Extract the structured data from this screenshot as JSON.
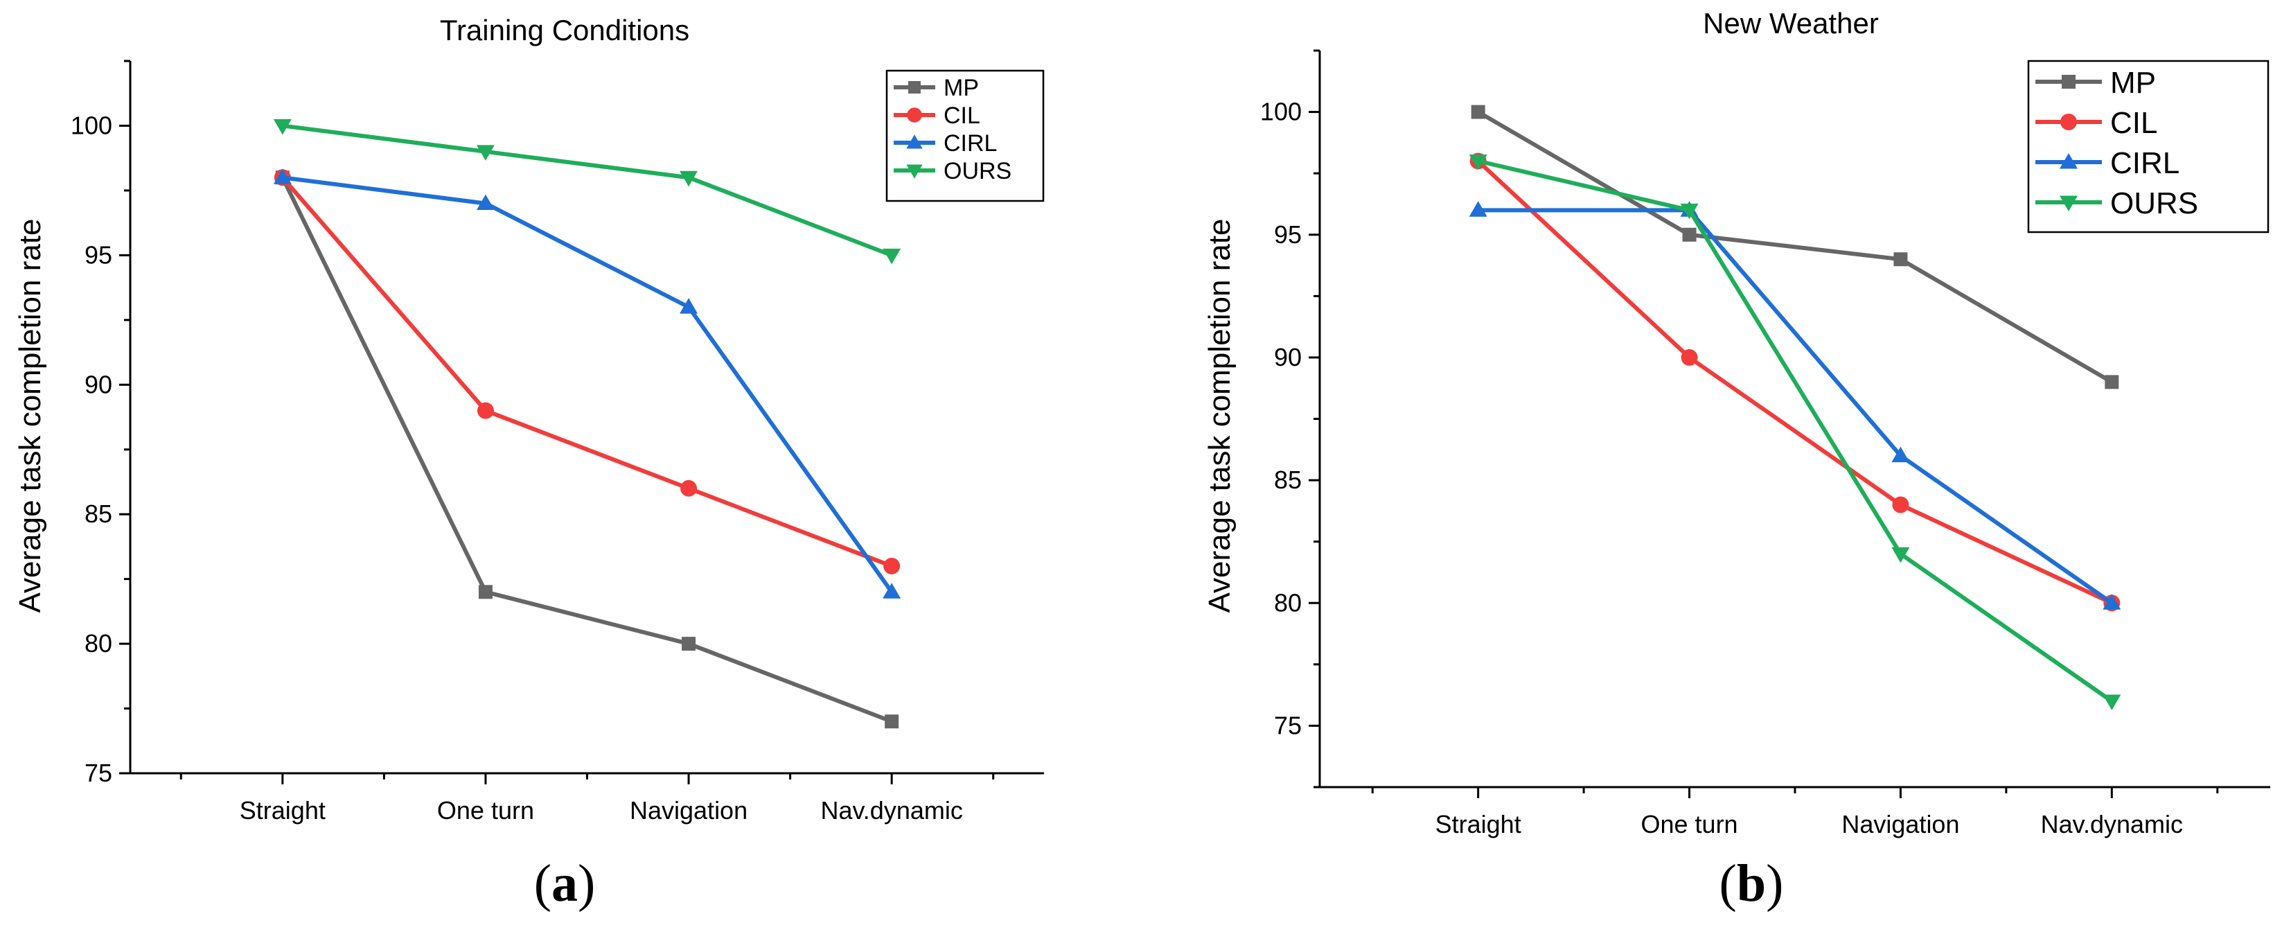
{
  "chart_data": [
    {
      "type": "line",
      "title": "Training Conditions",
      "ylabel": "Average task completion rate",
      "xlabel": "",
      "categories": [
        "Straight",
        "One turn",
        "Navigation",
        "Nav.dynamic"
      ],
      "ylim": [
        75,
        102.5
      ],
      "yticks": [
        75,
        80,
        85,
        90,
        95,
        100
      ],
      "panel_label": "a",
      "legend_position": "top-right",
      "grid": false,
      "series": [
        {
          "name": "MP",
          "color": "#666666",
          "marker": "square",
          "values": [
            98,
            82,
            80,
            77
          ]
        },
        {
          "name": "CIL",
          "color": "#f23c3c",
          "marker": "circle",
          "values": [
            98,
            89,
            86,
            83
          ]
        },
        {
          "name": "CIRL",
          "color": "#1f6fd6",
          "marker": "triangle-up",
          "values": [
            98,
            97,
            93,
            82
          ]
        },
        {
          "name": "OURS",
          "color": "#1eae5a",
          "marker": "triangle-down",
          "values": [
            100,
            99,
            98,
            95
          ]
        }
      ]
    },
    {
      "type": "line",
      "title": "New Weather",
      "ylabel": "Average task completion rate",
      "xlabel": "",
      "categories": [
        "Straight",
        "One turn",
        "Navigation",
        "Nav.dynamic"
      ],
      "ylim": [
        72.5,
        102.5
      ],
      "yticks": [
        75,
        80,
        85,
        90,
        95,
        100
      ],
      "panel_label": "b",
      "legend_position": "top-right",
      "grid": false,
      "series": [
        {
          "name": "MP",
          "color": "#666666",
          "marker": "square",
          "values": [
            100,
            95,
            94,
            89
          ]
        },
        {
          "name": "CIL",
          "color": "#f23c3c",
          "marker": "circle",
          "values": [
            98,
            90,
            84,
            80
          ]
        },
        {
          "name": "CIRL",
          "color": "#1f6fd6",
          "marker": "triangle-up",
          "values": [
            96,
            96,
            86,
            80
          ]
        },
        {
          "name": "OURS",
          "color": "#1eae5a",
          "marker": "triangle-down",
          "values": [
            98,
            96,
            82,
            76
          ]
        }
      ]
    }
  ]
}
